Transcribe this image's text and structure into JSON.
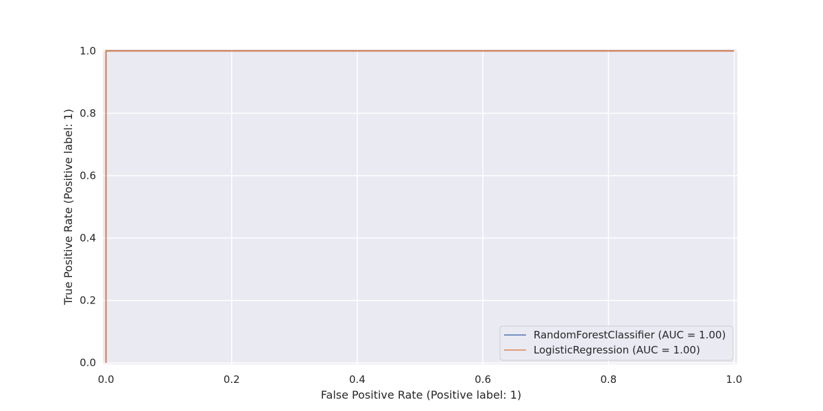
{
  "chart_data": {
    "type": "line",
    "title": "",
    "xlabel": "False Positive Rate (Positive label: 1)",
    "ylabel": "True Positive Rate (Positive label: 1)",
    "xlim": [
      -0.005,
      1.005
    ],
    "ylim": [
      -0.005,
      1.005
    ],
    "xticks": [
      0.0,
      0.2,
      0.4,
      0.6,
      0.8,
      1.0
    ],
    "yticks": [
      0.0,
      0.2,
      0.4,
      0.6,
      0.8,
      1.0
    ],
    "xtick_labels": [
      "0.0",
      "0.2",
      "0.4",
      "0.6",
      "0.8",
      "1.0"
    ],
    "ytick_labels": [
      "0.0",
      "0.2",
      "0.4",
      "0.6",
      "0.8",
      "1.0"
    ],
    "grid": true,
    "legend_position": "bottom-right",
    "background_color": "#eaeaf2",
    "grid_color": "#ffffff",
    "series": [
      {
        "name": "RandomForestClassifier (AUC = 1.00)",
        "color": "#4c72b0",
        "x": [
          0.0,
          0.0,
          1.0
        ],
        "y": [
          0.0,
          1.0,
          1.0
        ]
      },
      {
        "name": "LogisticRegression (AUC = 1.00)",
        "color": "#dd8452",
        "x": [
          0.0,
          0.0,
          1.0
        ],
        "y": [
          0.0,
          1.0,
          1.0
        ]
      }
    ]
  }
}
